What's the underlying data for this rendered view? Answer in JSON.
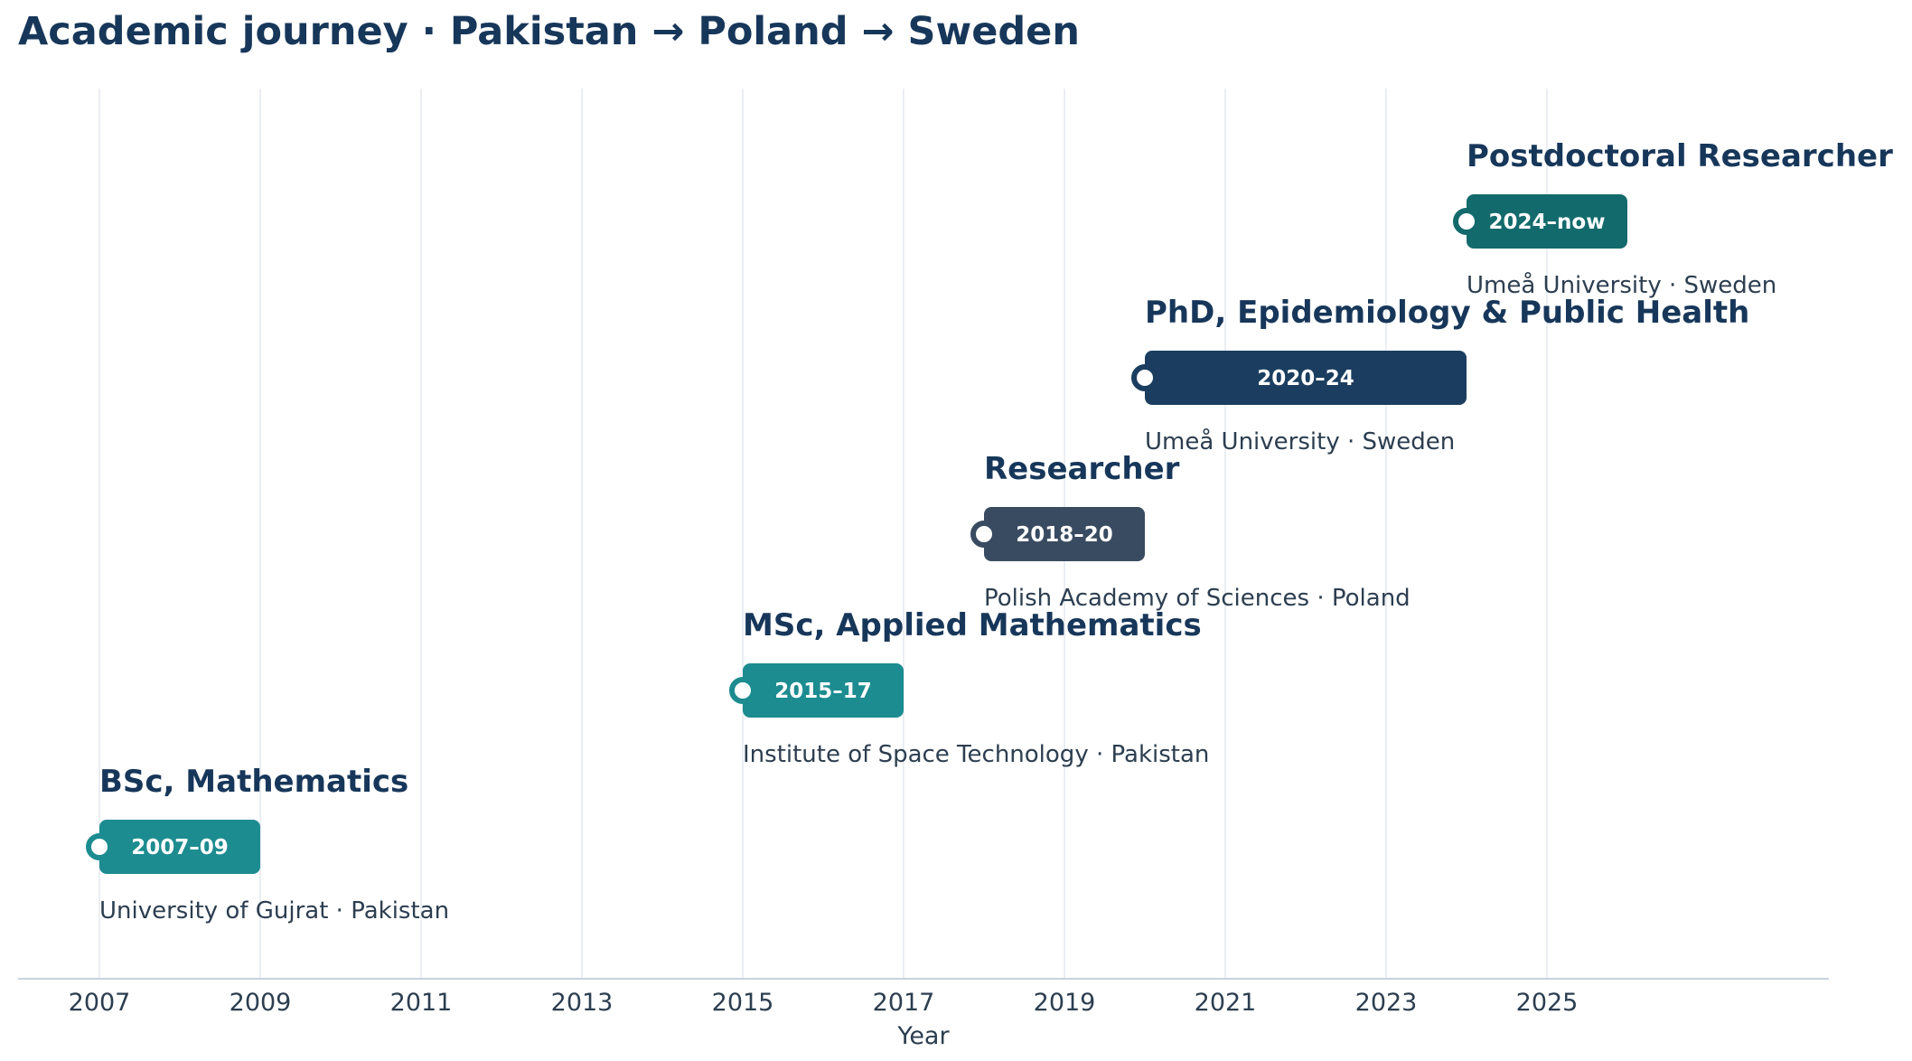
{
  "title": "Academic journey · Pakistan → Poland → Sweden",
  "chart_data": {
    "type": "timeline",
    "title": "Academic journey · Pakistan → Poland → Sweden",
    "xlabel": "Year",
    "xlim": [
      2007,
      2029.5
    ],
    "xticks": [
      2007,
      2009,
      2011,
      2013,
      2015,
      2017,
      2019,
      2021,
      2023,
      2025
    ],
    "grid": true,
    "items": [
      {
        "title": "BSc, Mathematics",
        "period": "2007–09",
        "subtitle": "University of Gujrat · Pakistan",
        "start": 2007,
        "end": 2009,
        "color": "#1c8c90"
      },
      {
        "title": "MSc, Applied Mathematics",
        "period": "2015–17",
        "subtitle": "Institute of Space Technology · Pakistan",
        "start": 2015,
        "end": 2017,
        "color": "#1c8c90"
      },
      {
        "title": "Researcher",
        "period": "2018–20",
        "subtitle": "Polish Academy of Sciences · Poland",
        "start": 2018,
        "end": 2020,
        "color": "#394b60"
      },
      {
        "title": "PhD, Epidemiology & Public Health",
        "period": "2020–24",
        "subtitle": "Umeå University · Sweden",
        "start": 2020,
        "end": 2024,
        "color": "#1b3e60"
      },
      {
        "title": "Postdoctoral Researcher",
        "period": "2024–now",
        "subtitle": "Umeå University · Sweden",
        "start": 2024,
        "end": 2026,
        "color": "#136a6c"
      }
    ]
  }
}
